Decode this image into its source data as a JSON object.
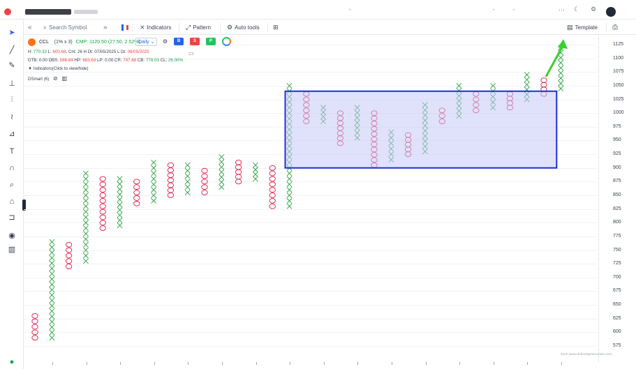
{
  "toolbar": {
    "search_placeholder": "Search Symbol",
    "interval": "Daily",
    "indicators_label": "Indicators",
    "pattern_label": "Pattern",
    "auto_tools_label": "Auto tools",
    "template_label": "Template",
    "badge_b": "B",
    "badge_s": "S",
    "badge_p": "P"
  },
  "symbol": {
    "name": "CCL",
    "box": "(1% x 3)",
    "cmp": "CMP: 1120.50 (27.50, 2.52%)",
    "line1_prefix": "H: ",
    "high": "770.33",
    "line1_mid": " L: ",
    "low": "600.68",
    "line1_rest": ", Cnt: 26 H Dt: 07/05/2025 L Dt: ",
    "l_date": "06/05/2025",
    "dtb_prefix": "DTB: 0.00 DBS: ",
    "dbs": "588.84",
    "hp_prefix": " HP: ",
    "hp": "683.63",
    "lp_rest": " LP: 0.00 CR: ",
    "cr": "747.68",
    "cb_prefix": " CB: ",
    "cb": "778.03",
    "cl_prefix": " CL: ",
    "cl": "26.00%"
  },
  "indicators": {
    "header": "Indicators(Click to view/hide)",
    "item": "DSmart (6)"
  },
  "watermark": "Zone (www.definedgesecurities.com)",
  "yaxis": {
    "labels": [
      "1125",
      "1100",
      "1075",
      "1050",
      "1025",
      "1000",
      "975",
      "950",
      "925",
      "900",
      "875",
      "850",
      "825",
      "800",
      "775",
      "750",
      "725",
      "700",
      "675",
      "650",
      "625",
      "600",
      "575"
    ]
  },
  "colors": {
    "x_color": "#22a33a",
    "o_color": "#e11d48",
    "box_border": "#1d2fd6",
    "box_fill": "#c7c9f7",
    "arrow": "#3ad12e"
  },
  "chart_data": {
    "type": "point-and-figure",
    "box_size_pct": 1,
    "reversal": 3,
    "ylim": [
      575,
      1130
    ],
    "columns": [
      {
        "t": "O",
        "hi": 630,
        "lo": 590
      },
      {
        "t": "X",
        "hi": 765,
        "lo": 590
      },
      {
        "t": "O",
        "hi": 760,
        "lo": 720
      },
      {
        "t": "X",
        "hi": 890,
        "lo": 730
      },
      {
        "t": "O",
        "hi": 880,
        "lo": 790
      },
      {
        "t": "X",
        "hi": 880,
        "lo": 795
      },
      {
        "t": "O",
        "hi": 875,
        "lo": 835
      },
      {
        "t": "X",
        "hi": 910,
        "lo": 840
      },
      {
        "t": "O",
        "hi": 905,
        "lo": 850
      },
      {
        "t": "X",
        "hi": 905,
        "lo": 855
      },
      {
        "t": "O",
        "hi": 895,
        "lo": 855
      },
      {
        "t": "X",
        "hi": 920,
        "lo": 865
      },
      {
        "t": "O",
        "hi": 910,
        "lo": 875
      },
      {
        "t": "X",
        "hi": 905,
        "lo": 880
      },
      {
        "t": "O",
        "hi": 900,
        "lo": 830
      },
      {
        "t": "X",
        "hi": 1050,
        "lo": 830
      },
      {
        "t": "O",
        "hi": 1035,
        "lo": 985
      },
      {
        "t": "X",
        "hi": 1010,
        "lo": 985
      },
      {
        "t": "O",
        "hi": 1000,
        "lo": 945
      },
      {
        "t": "X",
        "hi": 1010,
        "lo": 955
      },
      {
        "t": "O",
        "hi": 1000,
        "lo": 905
      },
      {
        "t": "X",
        "hi": 965,
        "lo": 915
      },
      {
        "t": "O",
        "hi": 960,
        "lo": 925
      },
      {
        "t": "X",
        "hi": 1015,
        "lo": 930
      },
      {
        "t": "O",
        "hi": 1005,
        "lo": 985
      },
      {
        "t": "X",
        "hi": 1050,
        "lo": 995
      },
      {
        "t": "O",
        "hi": 1035,
        "lo": 1005
      },
      {
        "t": "X",
        "hi": 1050,
        "lo": 1010
      },
      {
        "t": "O",
        "hi": 1035,
        "lo": 1010
      },
      {
        "t": "X",
        "hi": 1070,
        "lo": 1025
      },
      {
        "t": "O",
        "hi": 1060,
        "lo": 1035
      },
      {
        "t": "X",
        "hi": 1120,
        "lo": 1045
      }
    ],
    "highlight_box": {
      "from_col": 15,
      "to_col": 31,
      "y_top": 1040,
      "y_bottom": 900
    }
  }
}
